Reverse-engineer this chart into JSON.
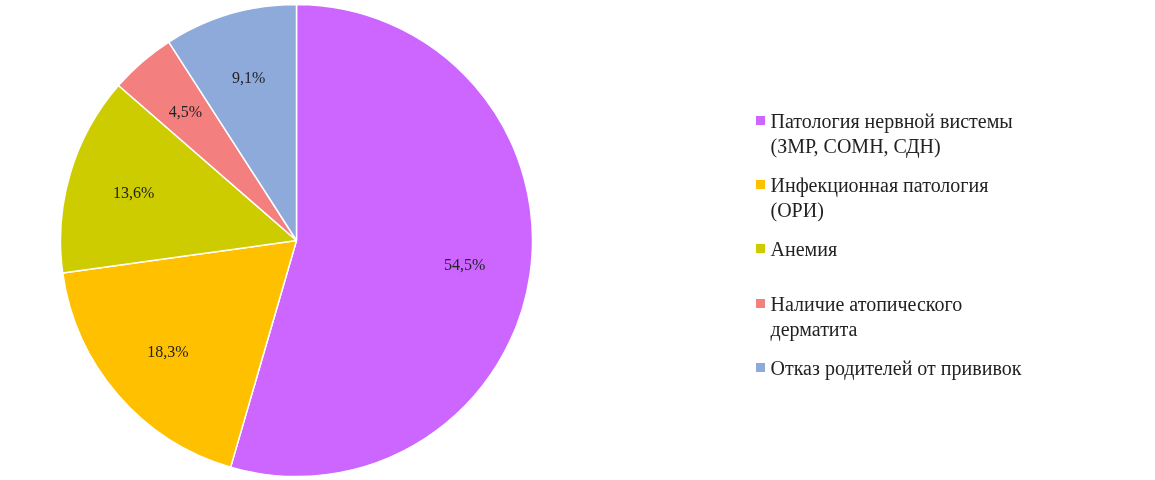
{
  "chart_data": {
    "type": "pie",
    "categories": [
      "Патология нервной вистемы (ЗМР, СОМН, СДН)",
      "Инфекционная патология (ОРИ)",
      "Анемия",
      "Наличие атопического дерматита",
      "Отказ родителей от прививок"
    ],
    "values": [
      54.5,
      18.3,
      13.6,
      4.5,
      9.1
    ],
    "value_labels": [
      "54,5%",
      "18,3%",
      "13,6%",
      "4,5%",
      "9,1%"
    ],
    "colors": [
      "#cc66ff",
      "#ffc000",
      "#cccc00",
      "#f47f7f",
      "#8eaadb"
    ],
    "legend": "right"
  }
}
